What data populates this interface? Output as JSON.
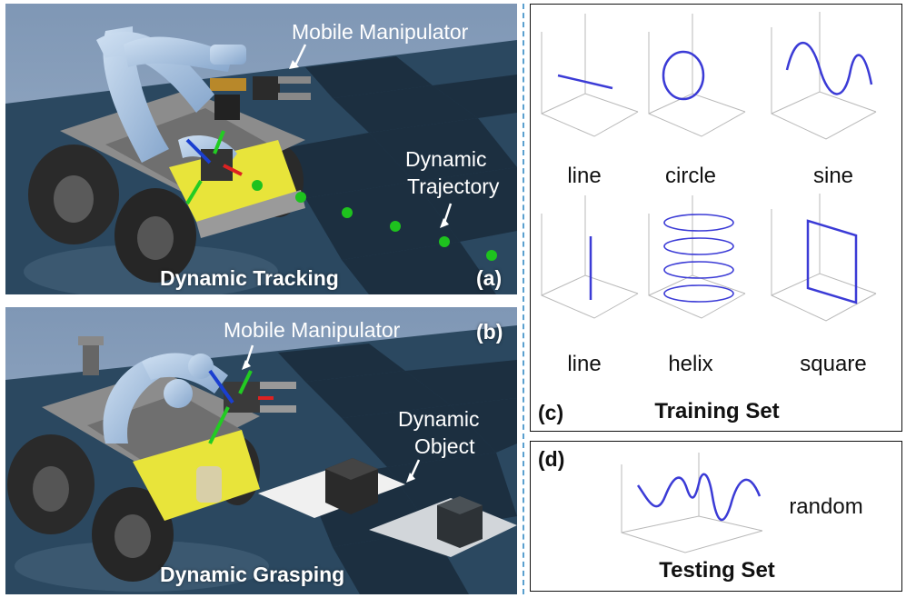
{
  "panel_a": {
    "tag": "(a)",
    "title": "Dynamic Tracking",
    "robot_label": "Mobile Manipulator",
    "trajectory_label_line1": "Dynamic",
    "trajectory_label_line2": "Trajectory",
    "colors": {
      "floor_dark": "#1f3344",
      "floor_light": "#3a5972",
      "trajectory": "#1ec21e"
    }
  },
  "panel_b": {
    "tag": "(b)",
    "title": "Dynamic Grasping",
    "robot_label": "Mobile Manipulator",
    "object_label_line1": "Dynamic",
    "object_label_line2": "Object"
  },
  "panel_c": {
    "tag": "(c)",
    "title": "Training Set",
    "labels": [
      "line",
      "circle",
      "sine",
      "line",
      "helix",
      "square"
    ],
    "curve_color": "#3b3bd6"
  },
  "panel_d": {
    "tag": "(d)",
    "title": "Testing Set",
    "label": "random"
  }
}
